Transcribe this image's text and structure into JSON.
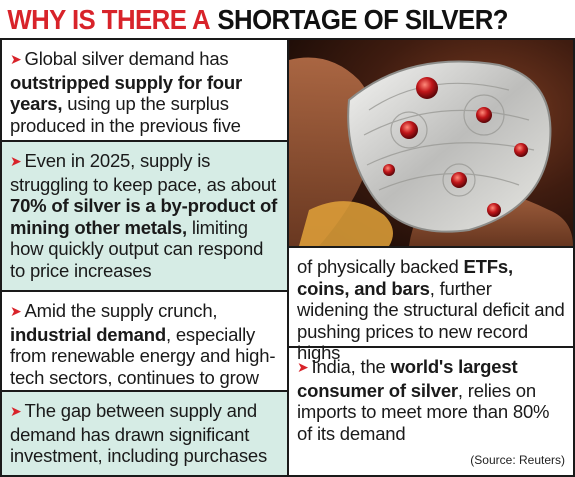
{
  "headline": {
    "red_part": "WHY IS THERE A",
    "black_part": "SHORTAGE OF SILVER?"
  },
  "items": [
    {
      "segments": [
        {
          "text": "Global silver demand has ",
          "bold": false
        },
        {
          "text": "outstripped supply for four years,",
          "bold": true
        },
        {
          "text": " using up the surplus produced in the previous five years",
          "bold": false
        }
      ]
    },
    {
      "segments": [
        {
          "text": "Even in 2025, supply is struggling to keep pace, as about ",
          "bold": false
        },
        {
          "text": "70% of silver is a by-product of mining other metals,",
          "bold": true
        },
        {
          "text": " limiting how quickly output can respond to price increases",
          "bold": false
        }
      ]
    },
    {
      "segments": [
        {
          "text": "Amid the supply crunch, ",
          "bold": false
        },
        {
          "text": "industrial demand",
          "bold": true
        },
        {
          "text": ", especially from renewable energy and high-tech sectors, continues to grow",
          "bold": false
        }
      ]
    },
    {
      "segments": [
        {
          "text": "The gap between supply and demand has drawn significant investment, including purchases",
          "bold": false
        }
      ]
    },
    {
      "continuation": true,
      "segments": [
        {
          "text": "of physically backed ",
          "bold": false
        },
        {
          "text": "ETFs, coins, and bars",
          "bold": true
        },
        {
          "text": ", further widening the structural deficit and pushing prices to new record highs",
          "bold": false
        }
      ]
    },
    {
      "segments": [
        {
          "text": "India, the ",
          "bold": false
        },
        {
          "text": "world's largest consumer of silver",
          "bold": true
        },
        {
          "text": ", relies on imports to meet more than 80% of its demand",
          "bold": false
        }
      ]
    }
  ],
  "source": "(Source: Reuters)",
  "photo": {
    "description_icon": "silver-jewellery-photo"
  },
  "colors": {
    "accent_red": "#d8232a",
    "shade_teal": "#d6ece5",
    "rule_black": "#1a1a1a"
  }
}
